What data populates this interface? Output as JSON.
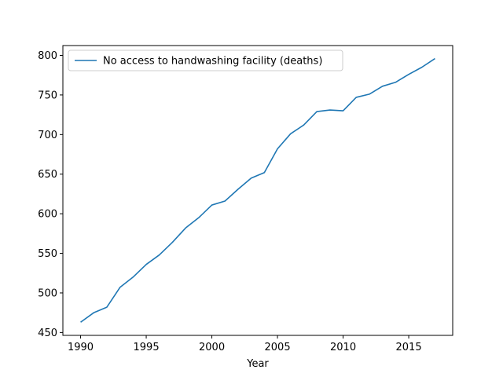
{
  "chart_data": {
    "type": "line",
    "title": "",
    "xlabel": "Year",
    "ylabel": "",
    "xlim": [
      1988.65,
      2018.35
    ],
    "ylim": [
      446.4,
      812.4
    ],
    "x_ticks": [
      1990,
      1995,
      2000,
      2005,
      2010,
      2015
    ],
    "y_ticks": [
      450,
      500,
      550,
      600,
      650,
      700,
      750,
      800
    ],
    "grid": false,
    "legend_position": "top-left",
    "color": "#1f77b4",
    "series": [
      {
        "name": "No access to handwashing facility (deaths)",
        "x": [
          1990,
          1991,
          1992,
          1993,
          1994,
          1995,
          1996,
          1997,
          1998,
          1999,
          2000,
          2001,
          2002,
          2003,
          2004,
          2005,
          2006,
          2007,
          2008,
          2009,
          2010,
          2011,
          2012,
          2013,
          2014,
          2015,
          2016,
          2017
        ],
        "y": [
          463,
          475,
          482,
          507,
          520,
          536,
          548,
          564,
          582,
          595,
          611,
          616,
          631,
          645,
          652,
          682,
          701,
          712,
          729,
          731,
          730,
          747,
          751,
          761,
          766,
          776,
          785,
          796
        ]
      }
    ]
  }
}
